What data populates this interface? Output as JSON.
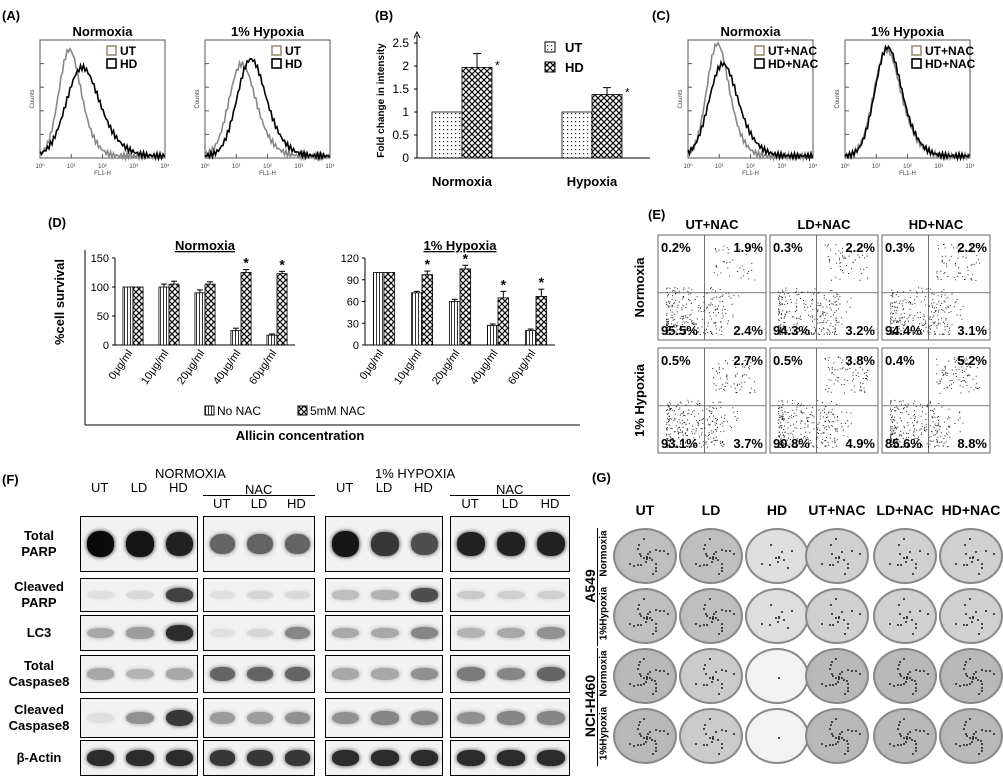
{
  "panelA": {
    "label": "(A)",
    "plots": [
      {
        "title": "Normoxia",
        "legend": [
          "UT",
          "HD"
        ],
        "ylab": "Counts",
        "xlab": "FL1-H"
      },
      {
        "title": "1% Hypoxia",
        "legend": [
          "UT",
          "HD"
        ],
        "ylab": "Counts",
        "xlab": "FL1-H"
      }
    ]
  },
  "panelB": {
    "label": "(B)"
  },
  "panelC": {
    "label": "(C)",
    "plots": [
      {
        "title": "Normoxia",
        "legend": [
          "UT+NAC",
          "HD+NAC"
        ],
        "ylab": "Counts",
        "xlab": "FL1-H"
      },
      {
        "title": "1% Hypoxia",
        "legend": [
          "UT+NAC",
          "HD+NAC"
        ],
        "ylab": "Counts",
        "xlab": "FL1-H"
      }
    ]
  },
  "panelD": {
    "label": "(D)",
    "xlabel": "Allicin  concentration",
    "legend": [
      "No NAC",
      "5mM NAC"
    ]
  },
  "panelE": {
    "label": "(E)",
    "cols": [
      "UT+NAC",
      "LD+NAC",
      "HD+NAC"
    ],
    "rows": [
      "Normoxia",
      "1% Hypoxia"
    ],
    "quads": [
      [
        [
          "0.2%",
          "1.9%",
          "95.5%",
          "2.4%"
        ],
        [
          "0.3%",
          "2.2%",
          "94.3%",
          "3.2%"
        ],
        [
          "0.3%",
          "2.2%",
          "94.4%",
          "3.1%"
        ]
      ],
      [
        [
          "0.5%",
          "2.7%",
          "93.1%",
          "3.7%"
        ],
        [
          "0.5%",
          "3.8%",
          "90.8%",
          "4.9%"
        ],
        [
          "0.4%",
          "5.2%",
          "85.6%",
          "8.8%"
        ]
      ]
    ]
  },
  "panelF": {
    "label": "(F)",
    "normoxia": "NORMOXIA",
    "hypoxia": "1% HYPOXIA",
    "nac": "NAC",
    "lanes": [
      "UT",
      "LD",
      "HD"
    ],
    "rows": [
      "Total\nPARP",
      "Cleaved\nPARP",
      "LC3",
      "Total\nCaspase8",
      "Cleaved\nCaspase8",
      "β-Actin"
    ]
  },
  "panelG": {
    "label": "(G)",
    "cols": [
      "UT",
      "LD",
      "HD",
      "UT+NAC",
      "LD+NAC",
      "HD+NAC"
    ],
    "cellLines": [
      "A549",
      "NCI-H460"
    ],
    "rowConds": [
      "Normoxia",
      "1%Hypoxia"
    ]
  },
  "chart_data": [
    {
      "type": "bar",
      "categories": [
        "Normoxia",
        "Hypoxia"
      ],
      "series": [
        {
          "name": "UT",
          "values": [
            1,
            1
          ],
          "errors": [
            0,
            0
          ]
        },
        {
          "name": "HD",
          "values": [
            1.97,
            1.38
          ],
          "errors": [
            0.3,
            0.15
          ]
        }
      ],
      "significance": [
        false,
        true,
        false,
        true
      ],
      "ylabel": "Fold change in intensity",
      "ylim": [
        0,
        2.5
      ],
      "yticks": [
        0,
        0.5,
        1,
        1.5,
        2,
        2.5
      ],
      "legend": "top-right"
    },
    {
      "type": "bar",
      "title": "Normoxia",
      "categories": [
        "0μg/ml",
        "10μg/ml",
        "20μg/ml",
        "40μg/ml",
        "60μg/ml"
      ],
      "series": [
        {
          "name": "No NAC",
          "values": [
            100,
            100,
            90,
            25,
            17
          ],
          "errors": [
            0,
            5,
            5,
            4,
            2
          ]
        },
        {
          "name": "5mM NAC",
          "values": [
            100,
            105,
            105,
            125,
            123
          ],
          "errors": [
            0,
            5,
            4,
            5,
            4
          ]
        }
      ],
      "significance": [
        false,
        false,
        false,
        true,
        true
      ],
      "ylabel": "%cell survival",
      "ylim": [
        0,
        150
      ],
      "yticks": [
        0,
        50,
        100,
        150
      ]
    },
    {
      "type": "bar",
      "title": "1% Hypoxia",
      "categories": [
        "0μg/ml",
        "10μg/ml",
        "20μg/ml",
        "40μg/ml",
        "60μg/ml"
      ],
      "series": [
        {
          "name": "No NAC",
          "values": [
            100,
            72,
            60,
            27,
            20
          ],
          "errors": [
            0,
            2,
            3,
            2,
            2
          ]
        },
        {
          "name": "5mM NAC",
          "values": [
            100,
            97,
            105,
            65,
            67
          ],
          "errors": [
            0,
            5,
            5,
            9,
            10
          ]
        }
      ],
      "significance": [
        false,
        true,
        true,
        true,
        true
      ],
      "ylim": [
        0,
        120
      ],
      "yticks": [
        0,
        30,
        60,
        90,
        120
      ]
    }
  ]
}
